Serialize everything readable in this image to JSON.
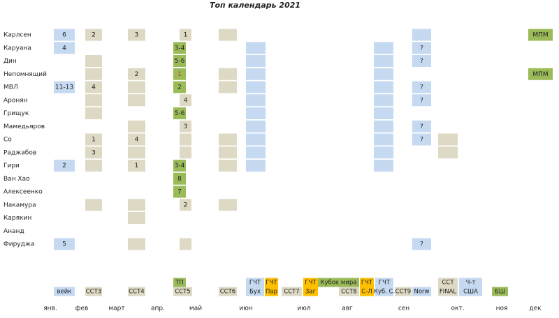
{
  "title": "Топ календарь 2021",
  "colors": {
    "blue": "#c5d9f1",
    "beige": "#ddd9c4",
    "green": "#9bbb59",
    "orange": "#ffc000",
    "red": "#e03020"
  },
  "players": [
    {
      "name": "Карлсен",
      "cells": [
        {
          "color": "blue",
          "text": "6"
        },
        {
          "color": "beige",
          "text": "2"
        },
        {
          "color": "beige",
          "text": "3"
        },
        {
          "color": "beige",
          "text": "1"
        },
        {
          "color": "beige"
        },
        null,
        null,
        {
          "color": "blue"
        },
        null,
        {
          "color": "green",
          "text": "МПМ"
        }
      ]
    },
    {
      "name": "Каруана",
      "cells": [
        {
          "color": "blue",
          "text": "4"
        },
        null,
        null,
        {
          "color": "green",
          "text": "3-4"
        },
        null,
        {
          "color": "blue"
        },
        {
          "color": "blue"
        },
        {
          "color": "blue",
          "text": "?"
        },
        null,
        null
      ]
    },
    {
      "name": "Дин",
      "cells": [
        null,
        {
          "color": "beige"
        },
        null,
        {
          "color": "green",
          "text": "5-6"
        },
        null,
        {
          "color": "blue"
        },
        {
          "color": "blue"
        },
        {
          "color": "blue",
          "text": "?"
        },
        null,
        null
      ]
    },
    {
      "name": "Непомнящий",
      "cells": [
        null,
        {
          "color": "beige"
        },
        {
          "color": "beige",
          "text": "2"
        },
        {
          "color": "green",
          "text": "1",
          "text_color": "red"
        },
        {
          "color": "beige"
        },
        {
          "color": "blue"
        },
        {
          "color": "blue"
        },
        null,
        null,
        {
          "color": "green",
          "text": "МПМ"
        }
      ]
    },
    {
      "name": "МВЛ",
      "cells": [
        {
          "color": "blue",
          "text": "11-13"
        },
        {
          "color": "beige",
          "text": "4"
        },
        {
          "color": "beige"
        },
        {
          "color": "green",
          "text": "2"
        },
        {
          "color": "beige"
        },
        {
          "color": "blue"
        },
        {
          "color": "blue"
        },
        {
          "color": "blue",
          "text": "?"
        },
        null,
        null
      ]
    },
    {
      "name": "Аронян",
      "cells": [
        null,
        {
          "color": "beige"
        },
        {
          "color": "beige"
        },
        {
          "color": "beige",
          "text": "4"
        },
        null,
        {
          "color": "blue"
        },
        {
          "color": "blue"
        },
        {
          "color": "blue",
          "text": "?"
        },
        null,
        null
      ]
    },
    {
      "name": "Грищук",
      "cells": [
        null,
        {
          "color": "beige"
        },
        null,
        {
          "color": "green",
          "text": "5-6"
        },
        null,
        {
          "color": "blue"
        },
        {
          "color": "blue"
        },
        null,
        null,
        null
      ]
    },
    {
      "name": "Мамедьяров",
      "cells": [
        null,
        null,
        {
          "color": "beige"
        },
        {
          "color": "beige",
          "text": "3"
        },
        null,
        {
          "color": "blue"
        },
        {
          "color": "blue"
        },
        {
          "color": "blue",
          "text": "?"
        },
        null,
        null
      ]
    },
    {
      "name": "Со",
      "cells": [
        null,
        {
          "color": "beige",
          "text": "1"
        },
        {
          "color": "beige",
          "text": "4"
        },
        {
          "color": "beige"
        },
        {
          "color": "beige"
        },
        {
          "color": "blue"
        },
        {
          "color": "blue"
        },
        {
          "color": "blue",
          "text": "?"
        },
        {
          "color": "beige"
        },
        null
      ]
    },
    {
      "name": "Раджабов",
      "cells": [
        null,
        {
          "color": "beige",
          "text": "3"
        },
        {
          "color": "beige"
        },
        {
          "color": "beige"
        },
        {
          "color": "beige"
        },
        {
          "color": "blue"
        },
        {
          "color": "blue"
        },
        null,
        {
          "color": "beige"
        },
        null
      ]
    },
    {
      "name": "Гири",
      "cells": [
        {
          "color": "blue",
          "text": "2"
        },
        {
          "color": "beige"
        },
        {
          "color": "beige",
          "text": "1"
        },
        {
          "color": "green",
          "text": "3-4"
        },
        {
          "color": "beige"
        },
        {
          "color": "blue"
        },
        {
          "color": "blue"
        },
        null,
        null,
        null
      ]
    },
    {
      "name": "Ван Хао",
      "cells": [
        null,
        null,
        null,
        {
          "color": "green",
          "text": "8"
        },
        null,
        null,
        null,
        null,
        null,
        null
      ]
    },
    {
      "name": "Алексеенко",
      "cells": [
        null,
        null,
        null,
        {
          "color": "green",
          "text": "7"
        },
        null,
        null,
        null,
        null,
        null,
        null
      ]
    },
    {
      "name": "Накамура",
      "cells": [
        null,
        {
          "color": "beige"
        },
        {
          "color": "beige"
        },
        {
          "color": "beige",
          "text": "2"
        },
        {
          "color": "beige"
        },
        null,
        null,
        null,
        null,
        null
      ]
    },
    {
      "name": "Карякин",
      "cells": [
        null,
        null,
        {
          "color": "beige"
        },
        null,
        null,
        null,
        null,
        null,
        null,
        null
      ]
    },
    {
      "name": "Ананд",
      "cells": [
        null,
        null,
        null,
        null,
        null,
        null,
        null,
        null,
        null,
        null
      ]
    },
    {
      "name": "Фируджа",
      "cells": [
        {
          "color": "blue",
          "text": "5"
        },
        null,
        {
          "color": "beige"
        },
        {
          "color": "beige"
        },
        null,
        null,
        null,
        {
          "color": "blue",
          "text": "?"
        },
        null,
        null
      ]
    }
  ],
  "events": [
    {
      "text": "ТП",
      "color": "green"
    },
    {
      "text": "ГЧТ",
      "color": "blue"
    },
    {
      "text": "ГЧТ",
      "color": "orange"
    },
    {
      "text": "ГЧТ",
      "color": "orange"
    },
    {
      "text": "Кубок мира",
      "color": "green"
    },
    {
      "text": "ГЧТ",
      "color": "orange"
    },
    {
      "text": "ГЧТ",
      "color": "blue"
    },
    {
      "text": "ССТ",
      "color": "beige"
    },
    {
      "text": "Ч-т",
      "color": "blue"
    },
    {
      "text": "вейк",
      "color": "blue"
    },
    {
      "text": "ССТ3",
      "color": "beige"
    },
    {
      "text": "ССТ4",
      "color": "beige"
    },
    {
      "text": "ССТ5",
      "color": "beige"
    },
    {
      "text": "ССТ6",
      "color": "beige"
    },
    {
      "text": "Бух",
      "color": "blue"
    },
    {
      "text": "Пар",
      "color": "orange"
    },
    {
      "text": "ССТ7",
      "color": "beige"
    },
    {
      "text": "Заг",
      "color": "orange"
    },
    {
      "text": "ССТ8",
      "color": "beige"
    },
    {
      "text": "С-Л",
      "color": "orange"
    },
    {
      "text": "Куб. С.",
      "color": "blue"
    },
    {
      "text": "ССТ9",
      "color": "beige"
    },
    {
      "text": "Norw",
      "color": "blue"
    },
    {
      "text": "FINAL",
      "color": "beige"
    },
    {
      "text": "США",
      "color": "blue"
    },
    {
      "text": "БШ",
      "color": "green"
    }
  ],
  "months": [
    "янв.",
    "фев",
    "март",
    "апр.",
    "май",
    "июн",
    "июл",
    "авг",
    "сен",
    "окт.",
    "ноя",
    "дек"
  ]
}
